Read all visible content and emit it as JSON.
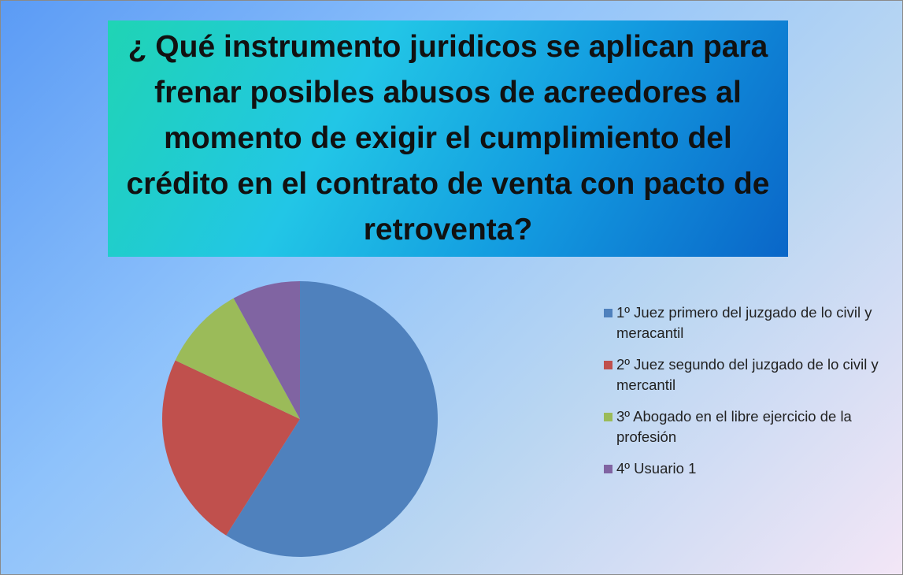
{
  "chart_data": {
    "type": "pie",
    "title": "¿ Qué instrumento juridicos se aplican  para frenar posibles abusos de acreedores al momento de exigir el cumplimiento del crédito en el contrato de venta con pacto de retroventa?",
    "categories": [
      "1º Juez primero del juzgado de lo civil y meracantil",
      "2º  Juez segundo del juzgado de lo civil y mercantil",
      "3º Abogado en el libre  ejercicio de la profesión",
      "4º Usuario 1"
    ],
    "values": [
      59,
      23,
      10,
      8
    ],
    "colors": [
      "#4f81bd",
      "#c0504d",
      "#9bbb59",
      "#8064a2"
    ],
    "legend": "right"
  }
}
